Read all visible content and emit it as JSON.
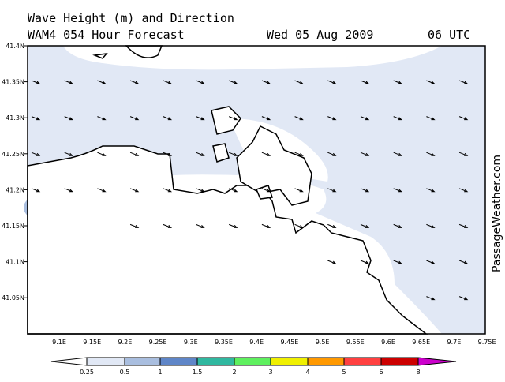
{
  "header": {
    "title": "Wave Height (m) and Direction",
    "model": "WAM4 054 Hour Forecast",
    "date": "Wed 05 Aug 2009",
    "time": "06 UTC"
  },
  "map": {
    "lat_labels": [
      "41.4N",
      "41.35N",
      "41.3N",
      "41.25N",
      "41.2N",
      "41.15N",
      "41.1N",
      "41.05N"
    ],
    "lon_labels": [
      "9.1E",
      "9.15E",
      "9.2E",
      "9.25E",
      "9.3E",
      "9.35E",
      "9.4E",
      "9.45E",
      "9.5E",
      "9.55E",
      "9.6E",
      "9.65E",
      "9.7E",
      "9.75E"
    ]
  },
  "legend": {
    "labels": [
      "0.25",
      "0.5",
      "1",
      "1.5",
      "2",
      "3",
      "4",
      "5",
      "6",
      "8"
    ],
    "colors": [
      "#ffffff",
      "#e1e8f5",
      "#a9bedf",
      "#5f86c8",
      "#30b8a0",
      "#5ef05e",
      "#f0f000",
      "#ff9900",
      "#ff4040",
      "#cc0000",
      "#cc00cc"
    ]
  },
  "watermark": "PassageWeather.com"
}
